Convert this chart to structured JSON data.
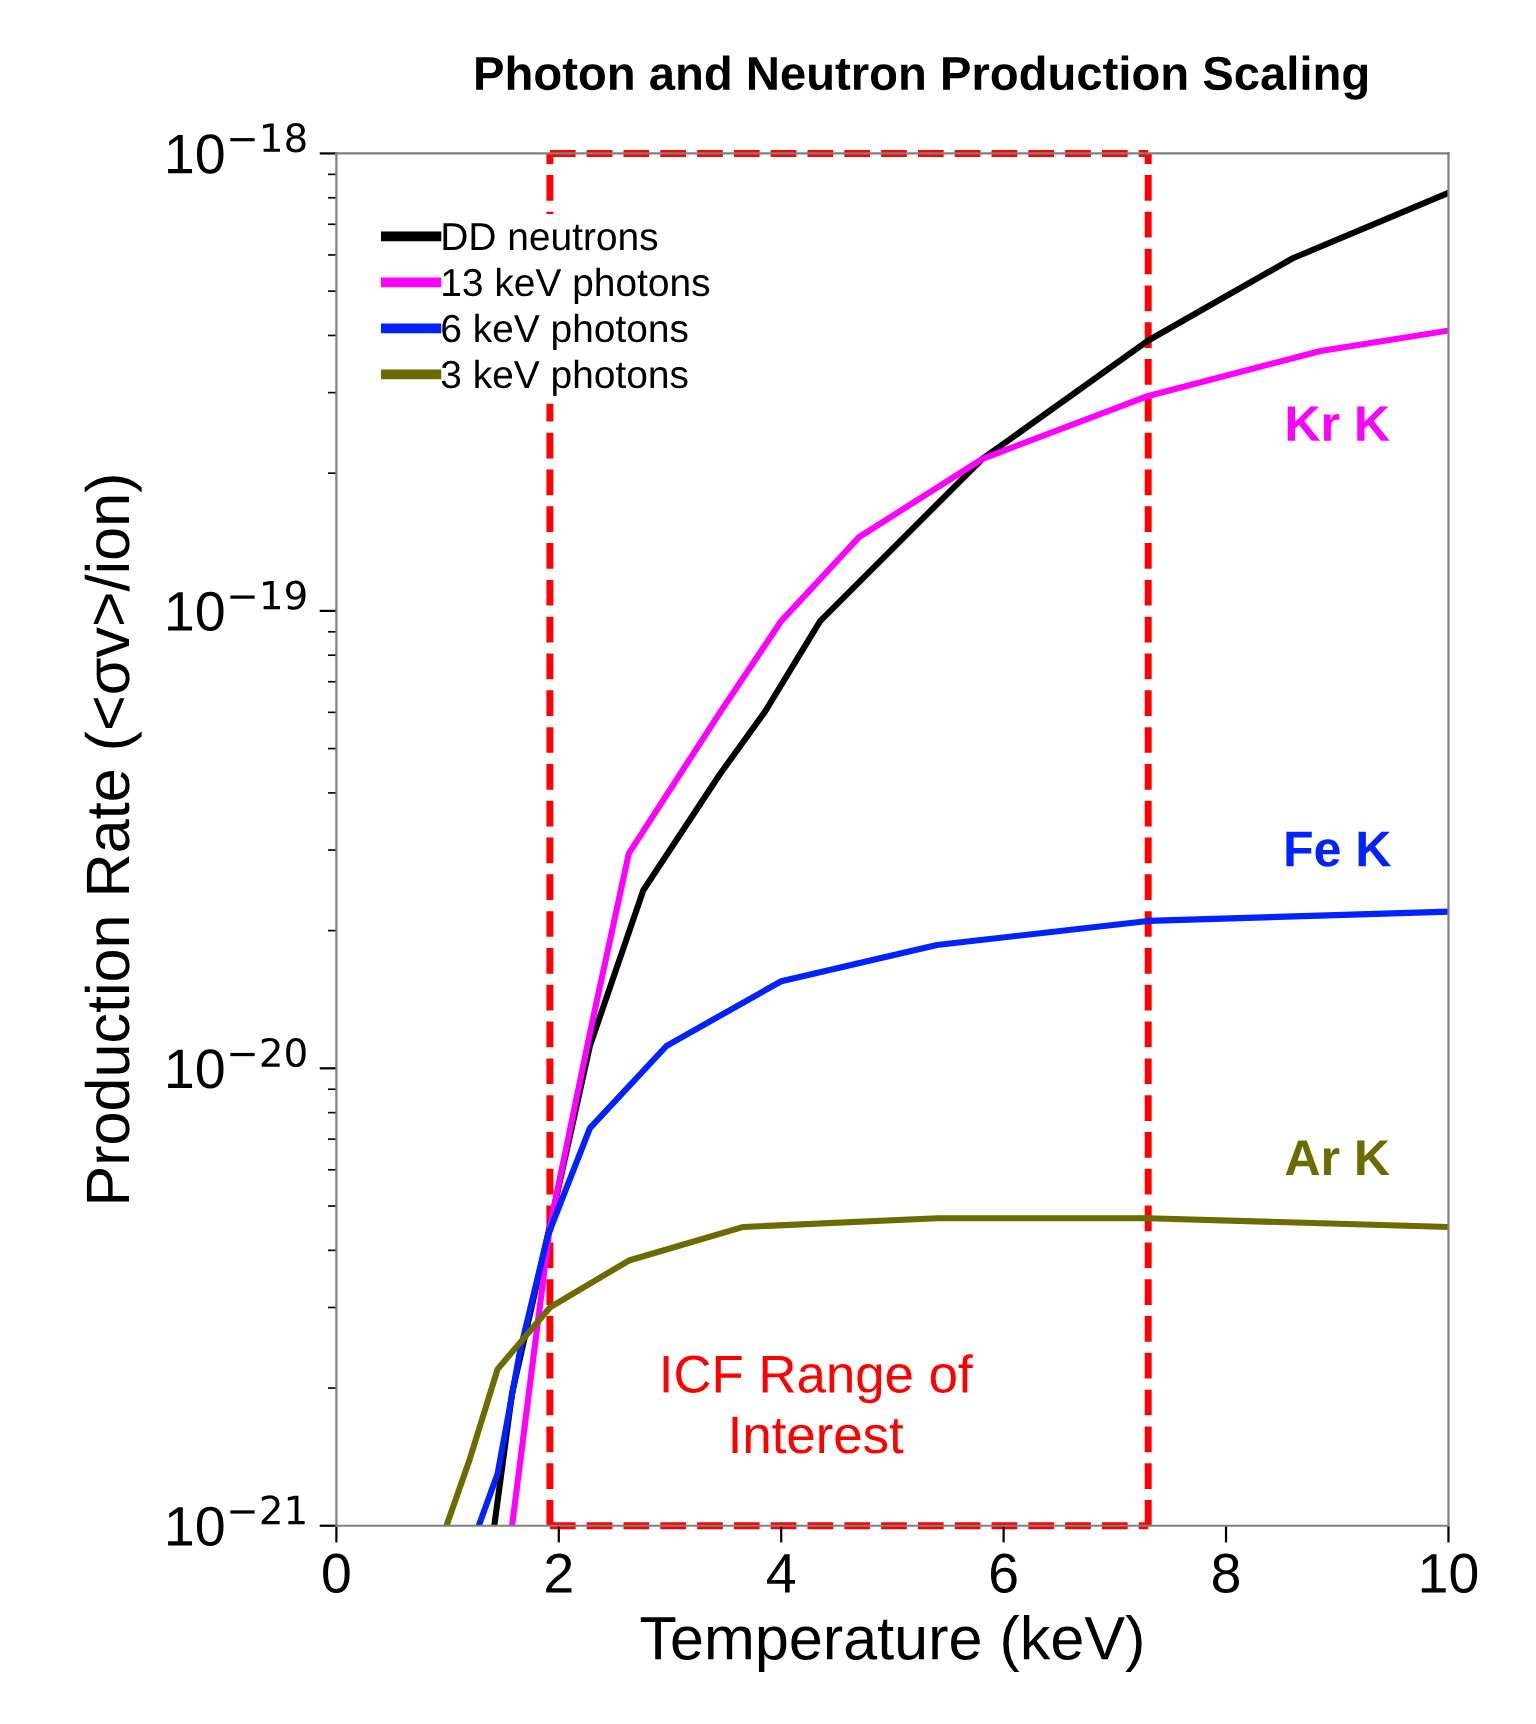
{
  "chart_data": {
    "type": "line",
    "title": "Photon and Neutron Production Scaling",
    "xlabel": "Temperature (keV)",
    "ylabel": "Production Rate (<σv>/ion)",
    "log": "y",
    "xlim": [
      0,
      10
    ],
    "ylim": [
      1e-21,
      1e-18
    ],
    "xticks": [
      0,
      2,
      4,
      6,
      8,
      10
    ],
    "yticks": [
      {
        "value": 1e-21,
        "label": "10$^{−21}$"
      },
      {
        "value": 1e-20,
        "label": "10$^{−20}$"
      },
      {
        "value": 1e-19,
        "label": "10$^{−19}$"
      },
      {
        "value": 1e-18,
        "label": "10$^{−18}$"
      }
    ],
    "grid": false,
    "legend": "top left",
    "line_style": "solid",
    "marker": "none",
    "series": [
      {
        "name": "DD neutrons",
        "color": "#000000",
        "x": [
          1.42,
          1.58,
          1.9,
          2.28,
          2.76,
          3.45,
          3.85,
          4.35,
          5.81,
          7.3,
          8.6,
          10
        ],
        "values": [
          1e-21,
          1.95e-21,
          4.3e-21,
          1.12e-20,
          2.45e-20,
          4.4e-20,
          6e-20,
          9.5e-20,
          2.15e-19,
          3.9e-19,
          5.9e-19,
          8.2e-19
        ]
      },
      {
        "name": "13 keV photons",
        "color": "#ff00ff",
        "x": [
          1.58,
          1.92,
          2.3,
          2.63,
          3.45,
          4.0,
          4.7,
          5.81,
          7.3,
          8.85,
          10
        ],
        "values": [
          1e-21,
          4.5e-21,
          1.26e-20,
          2.95e-20,
          6e-20,
          9.5e-20,
          1.45e-19,
          2.15e-19,
          2.95e-19,
          3.7e-19,
          4.1e-19
        ]
      },
      {
        "name": "6 keV photons",
        "color": "#0022ff",
        "x": [
          1.28,
          1.45,
          1.65,
          1.9,
          2.28,
          2.97,
          4.0,
          5.4,
          7.3,
          10
        ],
        "values": [
          1e-21,
          1.3e-21,
          2.4e-21,
          4.3e-21,
          7.4e-21,
          1.12e-20,
          1.55e-20,
          1.86e-20,
          2.1e-20,
          2.2e-20
        ]
      },
      {
        "name": "3 keV photons",
        "color": "#6b6b00",
        "x": [
          0.99,
          1.2,
          1.45,
          1.92,
          2.63,
          3.66,
          5.4,
          7.3,
          10
        ],
        "values": [
          1e-21,
          1.4e-21,
          2.2e-21,
          3e-21,
          3.8e-21,
          4.5e-21,
          4.7e-21,
          4.7e-21,
          4.5e-21
        ]
      }
    ],
    "ref_lines": [
      {
        "axis": "x",
        "value": 1.92,
        "label": "ICF Range of\nInterest",
        "color": "#ff0000",
        "line_style": "dashed"
      },
      {
        "axis": "x",
        "value": 7.3,
        "color": "#ff0000",
        "line_style": "dashed"
      }
    ],
    "annotations": [
      "Kr K",
      "Fe K",
      "Ar K"
    ]
  }
}
